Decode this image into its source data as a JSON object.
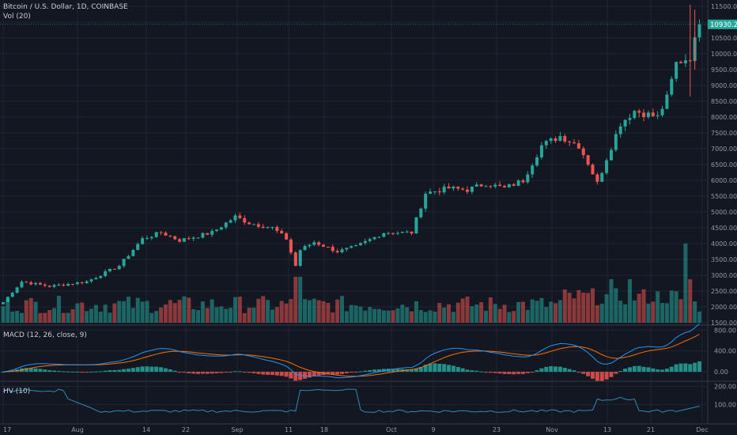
{
  "header": {
    "title": "Bitcoin / U.S. Dollar, 1D, COINBASE",
    "volume_indicator": "Vol (20)",
    "macd_indicator": "MACD (12, 26, close, 9)",
    "hv_indicator": "HV (10)"
  },
  "colors": {
    "background": "#131722",
    "grid": "#222633",
    "up": "#26a69a",
    "down": "#ef5350",
    "macd_line": "#2196f3",
    "signal_line": "#ff6d00",
    "hv_line": "#2d8bb8",
    "last_price_bg": "#26a69a"
  },
  "chart_data": {
    "type": "candlestick",
    "title": "Bitcoin / U.S. Dollar, 1D, COINBASE",
    "x_ticks": [
      "17",
      "Aug",
      "14",
      "22",
      "Sep",
      "11",
      "18",
      "Oct",
      "9",
      "23",
      "Nov",
      "13",
      "21",
      "Dec"
    ],
    "price_axis": {
      "ticks": [
        "11500.00",
        "11000.00",
        "10500.00",
        "10000.00",
        "9500.00",
        "9000.00",
        "8500.00",
        "8000.00",
        "7500.00",
        "7000.00",
        "6500.00",
        "6000.00",
        "5500.00",
        "5000.00",
        "4500.00",
        "4000.00",
        "3500.00",
        "3000.00",
        "2500.00",
        "2000.00",
        "1500.00"
      ],
      "range": [
        1500,
        11500
      ],
      "last_price": "10930.24"
    },
    "macd_axis": {
      "ticks": [
        "800.00",
        "400.00",
        "0.00"
      ],
      "range": [
        -150,
        850
      ]
    },
    "hv_axis": {
      "ticks": [
        "200.00",
        "100.00"
      ],
      "range": [
        0,
        220
      ]
    },
    "candles_close_anchors": [
      {
        "idx": 0,
        "close": 2150
      },
      {
        "idx": 4,
        "close": 2800
      },
      {
        "idx": 10,
        "close": 2650
      },
      {
        "idx": 18,
        "close": 2800
      },
      {
        "idx": 25,
        "close": 3300
      },
      {
        "idx": 30,
        "close": 4150
      },
      {
        "idx": 34,
        "close": 4350
      },
      {
        "idx": 38,
        "close": 4100
      },
      {
        "idx": 45,
        "close": 4350
      },
      {
        "idx": 50,
        "close": 4850
      },
      {
        "idx": 53,
        "close": 4650
      },
      {
        "idx": 58,
        "close": 4500
      },
      {
        "idx": 61,
        "close": 4150
      },
      {
        "idx": 63,
        "close": 3300
      },
      {
        "idx": 64,
        "close": 3800
      },
      {
        "idx": 67,
        "close": 4050
      },
      {
        "idx": 72,
        "close": 3750
      },
      {
        "idx": 76,
        "close": 3900
      },
      {
        "idx": 82,
        "close": 4350
      },
      {
        "idx": 88,
        "close": 4350
      },
      {
        "idx": 91,
        "close": 5600
      },
      {
        "idx": 96,
        "close": 5750
      },
      {
        "idx": 100,
        "close": 5700
      },
      {
        "idx": 104,
        "close": 5900
      },
      {
        "idx": 108,
        "close": 5750
      },
      {
        "idx": 112,
        "close": 6000
      },
      {
        "idx": 116,
        "close": 7100
      },
      {
        "idx": 120,
        "close": 7400
      },
      {
        "idx": 124,
        "close": 7100
      },
      {
        "idx": 126,
        "close": 6550
      },
      {
        "idx": 128,
        "close": 5900
      },
      {
        "idx": 130,
        "close": 6700
      },
      {
        "idx": 133,
        "close": 7800
      },
      {
        "idx": 136,
        "close": 8200
      },
      {
        "idx": 141,
        "close": 8000
      },
      {
        "idx": 143,
        "close": 8600
      },
      {
        "idx": 145,
        "close": 9700
      },
      {
        "idx": 148,
        "close": 9900
      },
      {
        "idx": 150,
        "close": 10900
      }
    ]
  }
}
